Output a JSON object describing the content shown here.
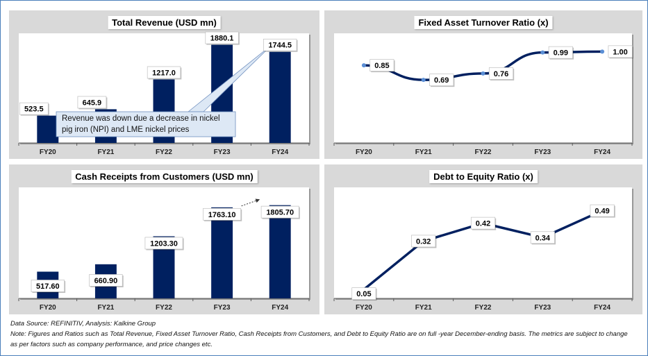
{
  "colors": {
    "bar": "#002060",
    "line": "#002060",
    "panel_bg": "#d9d9d9",
    "frame": "#4a7ebb",
    "callout_fill": "#dde8f5",
    "callout_border": "#6f8fbf"
  },
  "chart_data": [
    {
      "type": "bar",
      "title": "Total Revenue (USD mn)",
      "categories": [
        "FY20",
        "FY21",
        "FY22",
        "FY23",
        "FY24"
      ],
      "values": [
        523.5,
        645.9,
        1217.0,
        1880.1,
        1744.5
      ],
      "labels": [
        "523.5",
        "645.9",
        "1217.0",
        "1880.1",
        "1744.5"
      ],
      "ylim": [
        0,
        2100
      ],
      "grid": false,
      "annotation": "Revenue was down due a decrease in nickel pig iron (NPI) and LME nickel prices"
    },
    {
      "type": "line",
      "title": "Fixed Asset Turnover Ratio (x)",
      "categories": [
        "FY20",
        "FY21",
        "FY22",
        "FY23",
        "FY24"
      ],
      "values": [
        0.85,
        0.69,
        0.76,
        0.99,
        1.0
      ],
      "labels": [
        "0.85",
        "0.69",
        "0.76",
        "0.99",
        "1.00"
      ],
      "ylim": [
        0,
        1.2
      ],
      "smooth": true,
      "grid": false
    },
    {
      "type": "bar",
      "title": "Cash Receipts from Customers (USD mn)",
      "categories": [
        "FY20",
        "FY21",
        "FY22",
        "FY23",
        "FY24"
      ],
      "values": [
        517.6,
        660.9,
        1203.3,
        1763.1,
        1805.7
      ],
      "labels": [
        "517.60",
        "660.90",
        "1203.30",
        "1763.10",
        "1805.70"
      ],
      "ylim": [
        0,
        2150
      ],
      "grid": false
    },
    {
      "type": "line",
      "title": "Debt to Equity Ratio (x)",
      "categories": [
        "FY20",
        "FY21",
        "FY22",
        "FY23",
        "FY24"
      ],
      "values": [
        0.05,
        0.32,
        0.42,
        0.34,
        0.49
      ],
      "labels": [
        "0.05",
        "0.32",
        "0.42",
        "0.34",
        "0.49"
      ],
      "ylim": [
        0,
        0.62
      ],
      "smooth": false,
      "grid": false
    }
  ],
  "footer": {
    "source": "Data Source: REFINITIV, Analysis: Kalkine Group",
    "note": "Note: Figures and Ratios such as Total Revenue, Fixed Asset Turnover Ratio, Cash Receipts from Customers, and Debt to Equity Ratio are on full -year December-ending basis. The metrics are subject to change as per factors such as company performance, and price changes etc."
  }
}
